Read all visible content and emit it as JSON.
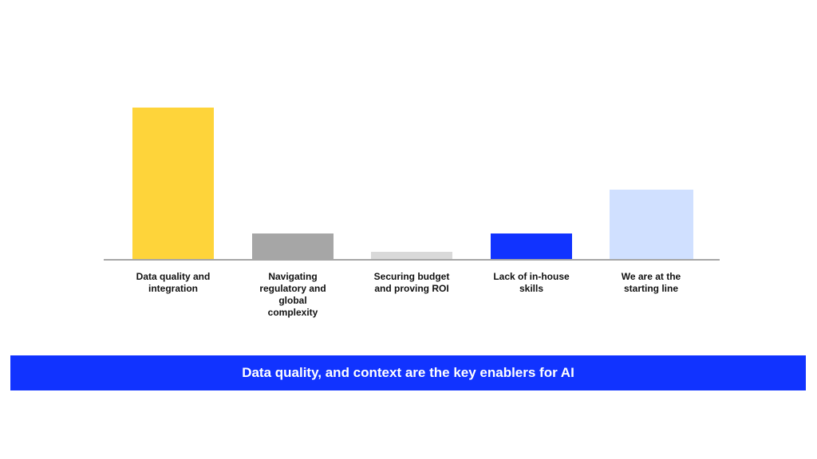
{
  "chart_data": {
    "type": "bar",
    "title": "",
    "xlabel": "",
    "ylabel": "",
    "categories": [
      "Data quality and integration",
      "Navigating regulatory and global complexity",
      "Securing budget and proving ROI",
      "Lack of in-house skills",
      "We are at the starting line"
    ],
    "values": [
      191,
      33,
      10,
      33,
      88
    ],
    "colors": [
      "#fed43a",
      "#a6a6a6",
      "#d9d9d9",
      "#1133ff",
      "#d0e0ff"
    ],
    "grid": false,
    "y_axis_shown": false,
    "ylim": [
      0,
      200
    ]
  },
  "labels": [
    "Data quality and\nintegration",
    "Navigating\nregulatory and\nglobal\ncomplexity",
    "Securing budget\nand proving ROI",
    "Lack of in-house\nskills",
    "We are at the\nstarting line"
  ],
  "banner": {
    "text": "Data quality, and context are the key enablers for AI",
    "color": "#1133ff"
  }
}
